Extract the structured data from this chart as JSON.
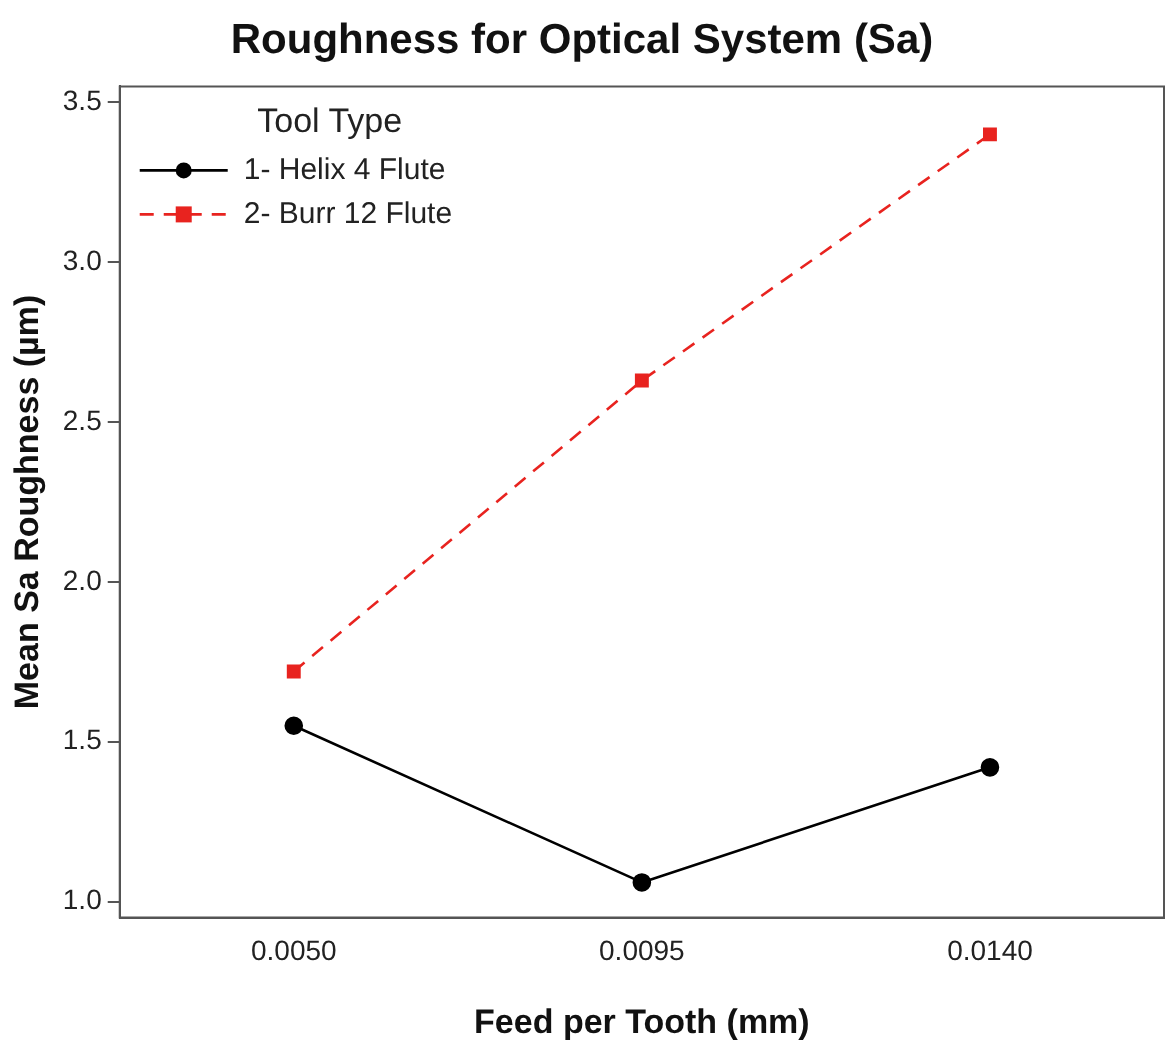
{
  "chart_data": {
    "type": "line",
    "title": "Roughness for Optical System (Sa)",
    "xlabel": "Feed per Tooth (mm)",
    "ylabel": "Mean Sa Roughness (µm)",
    "legend_title": "Tool Type",
    "legend": "top left",
    "grid": false,
    "categories": [
      "0.0050",
      "0.0095",
      "0.0140"
    ],
    "ylim": [
      0.95,
      3.55
    ],
    "yticks": [
      {
        "value": 1.0,
        "label": "1.0"
      },
      {
        "value": 1.5,
        "label": "1.5"
      },
      {
        "value": 2.0,
        "label": "2.0"
      },
      {
        "value": 2.5,
        "label": "2.5"
      },
      {
        "value": 3.0,
        "label": "3.0"
      },
      {
        "value": 3.5,
        "label": "3.5"
      }
    ],
    "series": [
      {
        "name": "1- Helix 4 Flute",
        "color": "#000000",
        "marker": "circle",
        "line_style": "solid",
        "values": [
          1.55,
          1.06,
          1.42
        ]
      },
      {
        "name": "2- Burr 12 Flute",
        "color": "#e8231f",
        "marker": "square",
        "line_style": "dashed",
        "values": [
          1.72,
          2.63,
          3.4
        ]
      }
    ]
  }
}
